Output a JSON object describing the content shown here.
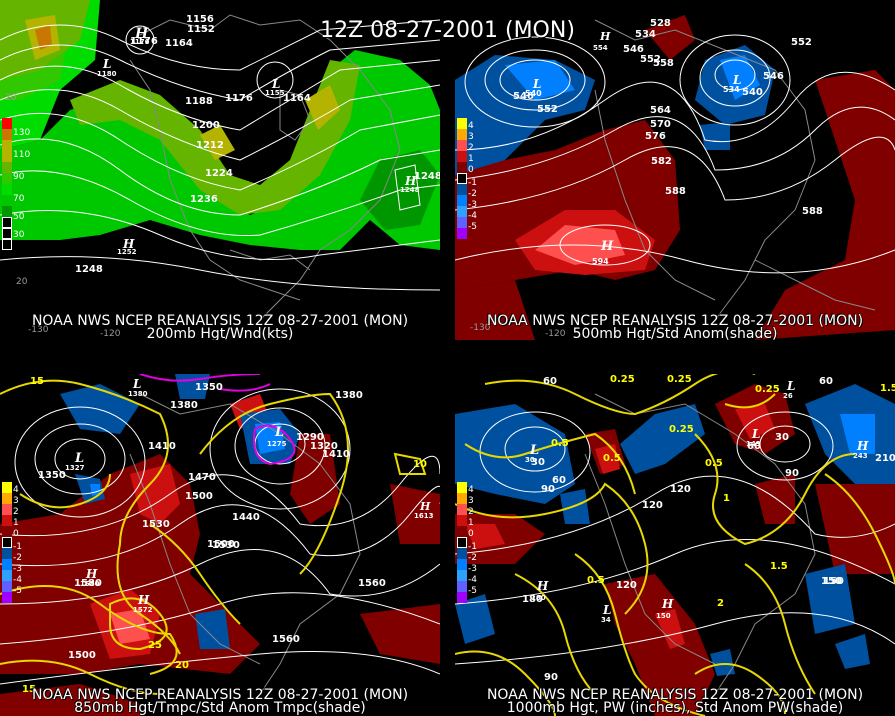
{
  "title": "12Z 08-27-2001 (MON)",
  "panels": [
    {
      "caption1": "NOAA NWS NCEP REANALYSIS 12Z 08-27-2001 (MON)",
      "caption2": "200mb Hgt/Wnd(kts)",
      "legend": [
        "130",
        "110",
        "90",
        "70",
        "50",
        "30"
      ],
      "legend_colors": [
        "#ff0000",
        "#c87800",
        "#b4b400",
        "#64b400",
        "#32c800",
        "#00dc00",
        "#009600"
      ],
      "labels": [
        "1164",
        "1176",
        "1188",
        "1200",
        "1212",
        "1224",
        "1236",
        "1248",
        "1248",
        "1156",
        "1152",
        "1164",
        "1176"
      ],
      "highs_lows": [
        "H",
        "L",
        "H",
        "L",
        "H"
      ],
      "hl_values": [
        "1176",
        "1180",
        "1252",
        "1155",
        "1248"
      ],
      "coords": [
        "-130",
        "-120",
        "20",
        "20"
      ]
    },
    {
      "caption1": "NOAA NWS NCEP REANALYSIS 12Z 08-27-2001 (MON)",
      "caption2": "500mb Hgt/Std Anom(shade)",
      "legend": [
        "4",
        "3",
        "2",
        "1",
        "0",
        "-1",
        "-2",
        "-3",
        "-4",
        "-5"
      ],
      "legend_colors": [
        "#ffff00",
        "#ffaa00",
        "#ff5050",
        "#cc1010",
        "#800000",
        "#000000",
        "#0050a0",
        "#0080ff",
        "#30a0ff",
        "#6060ff",
        "#a000ff"
      ],
      "labels": [
        "546",
        "552",
        "558",
        "564",
        "570",
        "576",
        "582",
        "588",
        "588",
        "546",
        "552",
        "528",
        "534",
        "540",
        "546",
        "552"
      ],
      "highs_lows": [
        "L",
        "L",
        "H",
        "H"
      ],
      "hl_values": [
        "540",
        "534",
        "594",
        "554"
      ],
      "coords": [
        "-120",
        "-130"
      ]
    },
    {
      "caption1": "NOAA NWS NCEP REANALYSIS 12Z 08-27-2001 (MON)",
      "caption2": "850mb Hgt/Tmpc/Std Anom Tmpc(shade)",
      "legend": [
        "4",
        "3",
        "2",
        "1",
        "0",
        "-1",
        "-2",
        "-3",
        "-4",
        "-5"
      ],
      "legend_colors": [
        "#ffff00",
        "#ffaa00",
        "#ff5050",
        "#cc1010",
        "#800000",
        "#000000",
        "#0050a0",
        "#0080ff",
        "#30a0ff",
        "#6060ff",
        "#a000ff"
      ],
      "labels": [
        "1350",
        "1380",
        "1410",
        "1440",
        "1470",
        "1500",
        "1530",
        "1560",
        "1500",
        "1410",
        "1350",
        "1290",
        "1320",
        "1380",
        "1500",
        "1530",
        "1560",
        "1580",
        "15",
        "25",
        "20",
        "10",
        "15"
      ],
      "highs_lows": [
        "L",
        "L",
        "H",
        "H",
        "L",
        "H"
      ],
      "hl_values": [
        "1327",
        "1275",
        "1580",
        "1572",
        "1380",
        "1613"
      ],
      "coords": []
    },
    {
      "caption1": "NOAA NWS NCEP REANALYSIS 12Z 08-27-2001 (MON)",
      "caption2": "1000mb Hgt, PW (inches), Std Anom PW(shade)",
      "legend": [
        "4",
        "3",
        "2",
        "1",
        "0",
        "-1",
        "-2",
        "-3",
        "-4",
        "-5"
      ],
      "legend_colors": [
        "#ffff00",
        "#ffaa00",
        "#ff5050",
        "#cc1010",
        "#800000",
        "#000000",
        "#0050a0",
        "#0080ff",
        "#30a0ff",
        "#6060ff",
        "#a000ff"
      ],
      "labels": [
        "60",
        "30",
        "60",
        "90",
        "120",
        "120",
        "120",
        "150",
        "90",
        "60",
        "30",
        "60",
        "90",
        "0.25",
        "0.25",
        "0.25",
        "0.5",
        "0.5",
        "0.5",
        "1",
        "1.5",
        "1.5",
        "2",
        "0.5",
        "0.25",
        "210",
        "150",
        "180"
      ],
      "highs_lows": [
        "L",
        "L",
        "L",
        "H",
        "H",
        "L",
        "H"
      ],
      "hl_values": [
        "30",
        "34",
        "26",
        "243",
        "150",
        "149",
        "180"
      ],
      "coords": []
    }
  ]
}
